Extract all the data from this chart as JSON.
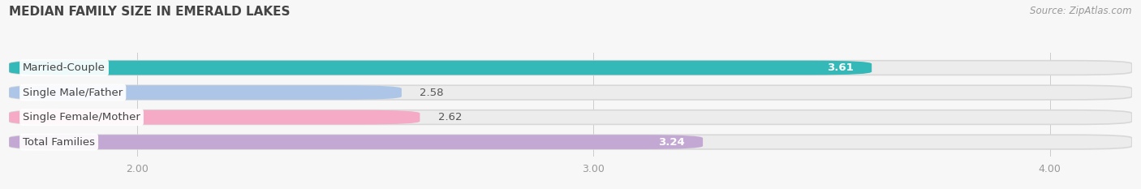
{
  "title": "MEDIAN FAMILY SIZE IN EMERALD LAKES",
  "source": "Source: ZipAtlas.com",
  "categories": [
    "Married-Couple",
    "Single Male/Father",
    "Single Female/Mother",
    "Total Families"
  ],
  "values": [
    3.61,
    2.58,
    2.62,
    3.24
  ],
  "bar_colors": [
    "#35b8b8",
    "#adc6e8",
    "#f5aac5",
    "#c3a8d4"
  ],
  "value_inside": [
    true,
    false,
    false,
    true
  ],
  "xlim_left": 1.72,
  "xlim_right": 4.18,
  "xticks": [
    2.0,
    3.0,
    4.0
  ],
  "xtick_labels": [
    "2.00",
    "3.00",
    "4.00"
  ],
  "bg_bar_color": "#e8e8e8",
  "bar_bg_light": "#f0f0f0",
  "background_color": "#f7f7f7",
  "bar_height": 0.58,
  "title_fontsize": 11,
  "label_fontsize": 9.5,
  "value_fontsize": 9.5,
  "tick_fontsize": 9,
  "source_fontsize": 8.5,
  "rounding_size": 0.13
}
